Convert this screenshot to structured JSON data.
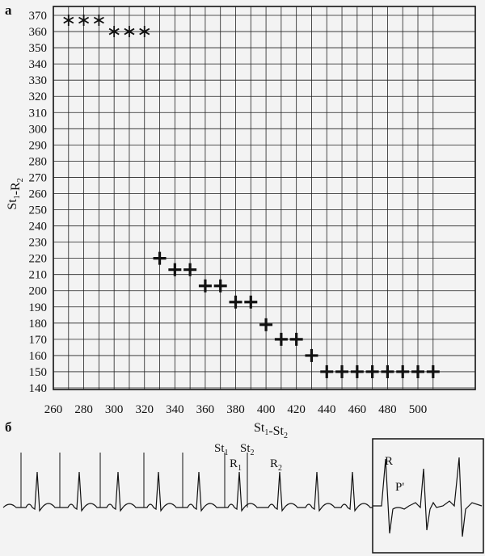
{
  "panels": {
    "a": "а",
    "b": "б"
  },
  "chart_data": {
    "type": "scatter",
    "xlabel": "St₁-St₂",
    "ylabel": "St₁-R₂",
    "xlim": [
      260,
      510
    ],
    "ylim": [
      140,
      372
    ],
    "xticks": [
      260,
      280,
      300,
      320,
      340,
      360,
      380,
      400,
      420,
      440,
      460,
      480,
      500
    ],
    "yticks": [
      140,
      150,
      160,
      170,
      180,
      190,
      200,
      210,
      220,
      230,
      240,
      250,
      260,
      270,
      280,
      290,
      300,
      310,
      320,
      330,
      340,
      350,
      360,
      370
    ],
    "grid": true,
    "series": [
      {
        "marker": "asterisk",
        "x": [
          270,
          280,
          290,
          300,
          310,
          320
        ],
        "y": [
          367,
          367,
          367,
          360,
          360,
          360
        ]
      },
      {
        "marker": "plus",
        "x": [
          330,
          340,
          350,
          360,
          370,
          380,
          390,
          400,
          410,
          420,
          430,
          440,
          450,
          460,
          470,
          480,
          490,
          500,
          510
        ],
        "y": [
          220,
          213,
          213,
          203,
          203,
          193,
          193,
          179,
          170,
          170,
          160,
          150,
          150,
          150,
          150,
          150,
          150,
          150,
          150
        ]
      }
    ]
  },
  "ecg": {
    "labels": {
      "st1": "St",
      "st1_sub": "1",
      "st2": "St",
      "st2_sub": "2",
      "r1": "R",
      "r1_sub": "1",
      "r2": "R",
      "r2_sub": "2",
      "r": "R",
      "p_prime": "P'"
    }
  }
}
